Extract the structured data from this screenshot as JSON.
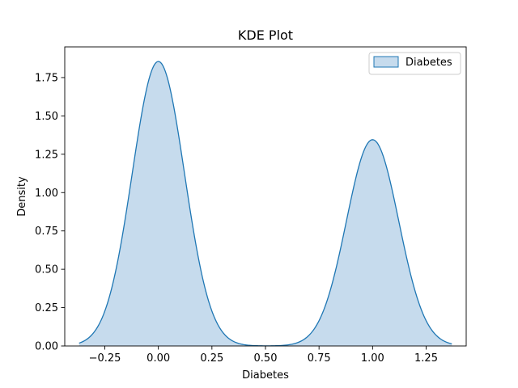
{
  "chart_data": {
    "type": "area",
    "title": "KDE Plot",
    "xlabel": "Diabetes",
    "ylabel": "Density",
    "xlim": [
      -0.437,
      1.437
    ],
    "ylim": [
      0,
      1.95
    ],
    "x_ticks": [
      -0.25,
      0.0,
      0.25,
      0.5,
      0.75,
      1.0,
      1.25
    ],
    "x_tick_labels": [
      "−0.25",
      "0.00",
      "0.25",
      "0.50",
      "0.75",
      "1.00",
      "1.25"
    ],
    "y_ticks": [
      0.0,
      0.25,
      0.5,
      0.75,
      1.0,
      1.25,
      1.5,
      1.75
    ],
    "y_tick_labels": [
      "0.00",
      "0.25",
      "0.50",
      "0.75",
      "1.00",
      "1.25",
      "1.50",
      "1.75"
    ],
    "grid": false,
    "legend_position": "upper right",
    "colors": {
      "line": "#1f77b4",
      "fill": "#c6dbed"
    },
    "series": [
      {
        "name": "Diabetes",
        "x_range": [
          -0.37,
          1.37
        ],
        "components": [
          {
            "center": 0.0,
            "peak": 1.855,
            "sigma": 0.122
          },
          {
            "center": 1.0,
            "peak": 1.345,
            "sigma": 0.122
          }
        ]
      }
    ]
  }
}
